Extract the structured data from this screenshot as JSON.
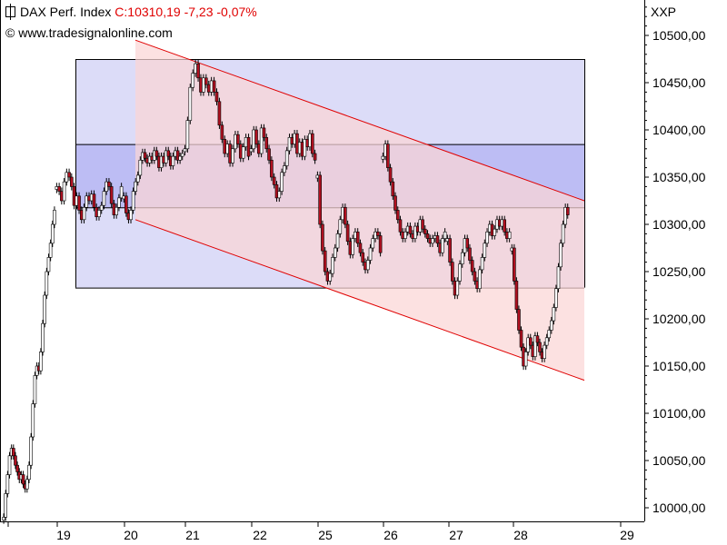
{
  "header": {
    "symbol_name": "DAX Perf. Index",
    "quote": "C:10310,19 -7,23 -0,07%",
    "copyright": "© www.tradesignalonline.com",
    "ticker": "XXP"
  },
  "colors": {
    "up_candle": "#ffffff",
    "down_candle": "#b01020",
    "channel_line": "#e00000",
    "channel_fill": "#fbd5d5",
    "range_fill": "#dcdcf8",
    "range_mid_fill": "#bdbdf4"
  },
  "chart_data": {
    "type": "candlestick",
    "title": "DAX Perf. Index",
    "x_tick_labels": [
      "19",
      "20",
      "21",
      "22",
      "25",
      "26",
      "27",
      "28",
      "29"
    ],
    "y_tick_labels": [
      "10000,00",
      "10050,00",
      "10100,00",
      "10150,00",
      "10200,00",
      "10250,00",
      "10300,00",
      "10350,00",
      "10400,00",
      "10450,00",
      "10500,00"
    ],
    "y_ticks": [
      10000,
      10050,
      10100,
      10150,
      10200,
      10250,
      10300,
      10350,
      10400,
      10450,
      10500
    ],
    "ylim": [
      9985,
      10525
    ],
    "last_close": 10310.19,
    "trend_channel": {
      "upper": [
        {
          "x": "20",
          "y": 10495
        },
        {
          "x": "29",
          "y": 10325
        }
      ],
      "lower": [
        {
          "x": "20",
          "y": 10305
        },
        {
          "x": "29",
          "y": 10135
        }
      ]
    },
    "range_box": {
      "x_start": "19",
      "x_end": "29",
      "levels": [
        10475,
        10385,
        10318,
        10233
      ]
    },
    "series": [
      {
        "day": "18",
        "close": [
          9990,
          10015,
          10035,
          10055,
          10063,
          10055,
          10045,
          10038,
          10030,
          10035,
          10025,
          10020,
          10030,
          10045,
          10075,
          10110,
          10140,
          10150,
          10145,
          10165,
          10195,
          10225,
          10250,
          10265,
          10280,
          10300,
          10315
        ]
      },
      {
        "day": "19",
        "close": [
          10340,
          10335,
          10325,
          10345,
          10355,
          10350,
          10340,
          10320,
          10330,
          10315,
          10305,
          10318,
          10330,
          10325,
          10332,
          10318,
          10308,
          10315,
          10320,
          10335,
          10345,
          10340,
          10322,
          10310,
          10318,
          10328,
          10340
        ]
      },
      {
        "day": "20",
        "close": [
          10330,
          10312,
          10305,
          10315,
          10335,
          10345,
          10352,
          10368,
          10376,
          10370,
          10365,
          10372,
          10368,
          10378,
          10372,
          10360,
          10372,
          10365,
          10378,
          10372,
          10362,
          10372,
          10378,
          10368,
          10372,
          10375
        ]
      },
      {
        "day": "21",
        "close": [
          10380,
          10410,
          10445,
          10460,
          10470,
          10455,
          10440,
          10455,
          10448,
          10440,
          10452,
          10440,
          10430,
          10405,
          10390,
          10375,
          10385,
          10365,
          10380,
          10395,
          10385,
          10370,
          10382,
          10392,
          10372
        ]
      },
      {
        "day": "22",
        "close": [
          10380,
          10400,
          10385,
          10375,
          10402,
          10392,
          10380,
          10368,
          10350,
          10342,
          10328,
          10335,
          10355,
          10362,
          10378,
          10392,
          10385,
          10396,
          10375,
          10387,
          10372,
          10390,
          10382,
          10396,
          10375,
          10368
        ]
      },
      {
        "day": "25",
        "close": [
          10352,
          10300,
          10272,
          10250,
          10240,
          10248,
          10265,
          10275,
          10290,
          10305,
          10318,
          10300,
          10282,
          10268,
          10285,
          10292,
          10280,
          10270,
          10260,
          10252,
          10262,
          10275,
          10285,
          10292,
          10288,
          10270
        ]
      },
      {
        "day": "26",
        "close": [
          10372,
          10385,
          10360,
          10345,
          10330,
          10315,
          10305,
          10292,
          10285,
          10292,
          10298,
          10290,
          10285,
          10298,
          10292,
          10305,
          10295,
          10290,
          10285,
          10280,
          10285,
          10288,
          10280,
          10270,
          10285,
          10292
        ]
      },
      {
        "day": "27",
        "close": [
          10285,
          10260,
          10240,
          10225,
          10240,
          10258,
          10270,
          10285,
          10275,
          10262,
          10250,
          10240,
          10232,
          10252,
          10265,
          10280,
          10292,
          10300,
          10288,
          10295,
          10305,
          10298,
          10305,
          10292,
          10285,
          10292
        ]
      },
      {
        "day": "28",
        "close": [
          10275,
          10240,
          10210,
          10188,
          10170,
          10150,
          10165,
          10180,
          10172,
          10160,
          10182,
          10175,
          10165,
          10158,
          10172,
          10180,
          10188,
          10198,
          10212,
          10232,
          10255,
          10280,
          10300,
          10318,
          10310
        ]
      }
    ]
  }
}
